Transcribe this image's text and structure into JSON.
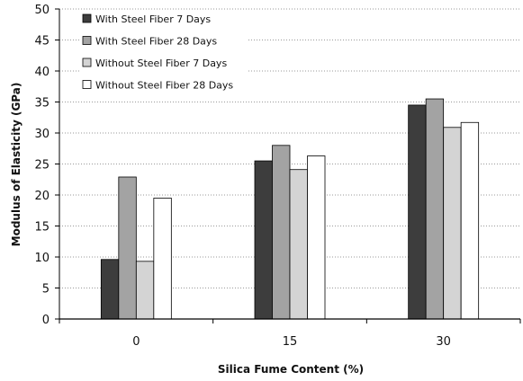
{
  "chart_data": {
    "type": "bar",
    "xlabel": "Silica Fume Content (%)",
    "ylabel": "Modulus of Elasticity (GPa)",
    "categories": [
      "0",
      "15",
      "30"
    ],
    "ylim": [
      0,
      50
    ],
    "yticks": [
      "0",
      "5",
      "10",
      "15",
      "20",
      "25",
      "30",
      "35",
      "40",
      "45",
      "50"
    ],
    "grid": "horizontal dotted",
    "legend_position": "top-left",
    "series": [
      {
        "name": "With Steel Fiber 7 Days",
        "color": "#3d3d3d",
        "values": [
          9.6,
          25.5,
          34.5
        ]
      },
      {
        "name": "With Steel Fiber 28 Days",
        "color": "#a3a3a3",
        "values": [
          22.9,
          28.0,
          35.5
        ]
      },
      {
        "name": "Without Steel Fiber 7 Days",
        "color": "#d4d4d4",
        "values": [
          9.3,
          24.1,
          30.9
        ]
      },
      {
        "name": "Without Steel Fiber 28 Days",
        "color": "#ffffff",
        "values": [
          19.5,
          26.3,
          31.7
        ]
      }
    ]
  }
}
